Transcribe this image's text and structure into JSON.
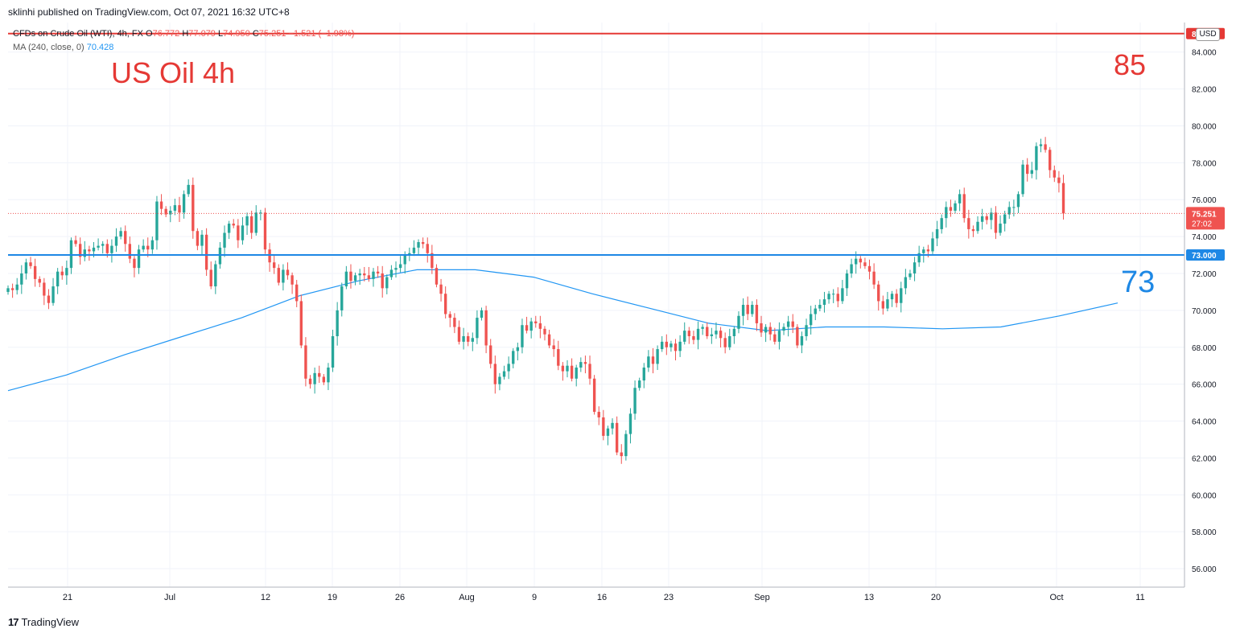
{
  "published_line": "sklinhi published on TradingView.com, Oct 07, 2021 16:32 UTC+8",
  "legend": {
    "symbol": "CFDs on Crude Oil (WTI), 4h, FX",
    "open_label": "O",
    "open": "76.772",
    "high_label": "H",
    "high": "77.079",
    "low_label": "L",
    "low": "74.950",
    "close_label": "C",
    "close": "75.251",
    "change": "−1.521 (−1.98%)",
    "ma_label": "MA (240, close, 0)",
    "ma_value": "70.428"
  },
  "annotations": {
    "title": "US Oil 4h",
    "upper_level": "85",
    "lower_level": "73"
  },
  "price_axis": {
    "currency": "USD",
    "ticks": [
      "84.000",
      "82.000",
      "80.000",
      "78.000",
      "76.000",
      "74.000",
      "72.000",
      "70.000",
      "68.000",
      "66.000",
      "64.000",
      "62.000",
      "60.000",
      "58.000",
      "56.000"
    ],
    "price_badge": "75.251",
    "countdown": "27:02",
    "upper_badge": "85.000",
    "lower_badge": "73.000"
  },
  "time_axis": {
    "labels": [
      "21",
      "Jul",
      "12",
      "19",
      "26",
      "Aug",
      "9",
      "16",
      "23",
      "Sep",
      "13",
      "20",
      "Oct",
      "11"
    ]
  },
  "colors": {
    "bull": "#26a69a",
    "bear": "#ef5350",
    "ma": "#2196f3",
    "resistance": "#e53935",
    "support": "#1e88e5",
    "grid": "#f0f3fa"
  },
  "branding": "TradingView",
  "chart_data": {
    "type": "candlestick",
    "timeframe": "4h",
    "y_range": [
      55,
      85.6
    ],
    "horizontal_lines": [
      85.0,
      73.0
    ],
    "last_price": 75.251,
    "closes": [
      [
        0,
        71.2
      ],
      [
        1,
        71.1
      ],
      [
        2,
        71.4
      ],
      [
        3,
        72.0
      ],
      [
        4,
        72.6
      ],
      [
        5,
        72.4
      ],
      [
        6,
        71.7
      ],
      [
        7,
        71.5
      ],
      [
        8,
        70.8
      ],
      [
        9,
        70.4
      ],
      [
        10,
        71.3
      ],
      [
        11,
        72.1
      ],
      [
        12,
        71.9
      ],
      [
        13,
        72.3
      ],
      [
        14,
        73.8
      ],
      [
        15,
        73.6
      ],
      [
        16,
        72.9
      ],
      [
        17,
        73.3
      ],
      [
        18,
        73.2
      ],
      [
        19,
        73.4
      ],
      [
        20,
        73.5
      ],
      [
        21,
        73.6
      ],
      [
        22,
        73.1
      ],
      [
        23,
        73.5
      ],
      [
        24,
        74.0
      ],
      [
        25,
        74.3
      ],
      [
        26,
        73.6
      ],
      [
        27,
        72.8
      ],
      [
        28,
        72.3
      ],
      [
        29,
        73.3
      ],
      [
        30,
        73.5
      ],
      [
        31,
        73.3
      ],
      [
        32,
        73.8
      ],
      [
        33,
        75.9
      ],
      [
        34,
        75.5
      ],
      [
        35,
        75.2
      ],
      [
        36,
        75.4
      ],
      [
        37,
        75.7
      ],
      [
        38,
        75.3
      ],
      [
        39,
        76.3
      ],
      [
        40,
        76.8
      ],
      [
        41,
        74.3
      ],
      [
        42,
        73.5
      ],
      [
        43,
        74.1
      ],
      [
        44,
        72.2
      ],
      [
        45,
        71.3
      ],
      [
        46,
        72.5
      ],
      [
        47,
        73.4
      ],
      [
        48,
        74.2
      ],
      [
        49,
        74.7
      ],
      [
        50,
        74.6
      ],
      [
        51,
        73.8
      ],
      [
        52,
        74.6
      ],
      [
        53,
        75.1
      ],
      [
        54,
        74.2
      ],
      [
        55,
        75.3
      ],
      [
        56,
        75.3
      ],
      [
        57,
        73.3
      ],
      [
        58,
        72.6
      ],
      [
        59,
        72.3
      ],
      [
        60,
        71.5
      ],
      [
        61,
        72.2
      ],
      [
        62,
        71.9
      ],
      [
        63,
        71.4
      ],
      [
        64,
        70.5
      ],
      [
        65,
        68.1
      ],
      [
        66,
        66.3
      ],
      [
        67,
        66.0
      ],
      [
        68,
        66.6
      ],
      [
        69,
        66.4
      ],
      [
        70,
        66.1
      ],
      [
        71,
        66.9
      ],
      [
        72,
        68.6
      ],
      [
        73,
        70.0
      ],
      [
        74,
        71.3
      ],
      [
        75,
        72.1
      ],
      [
        76,
        71.6
      ],
      [
        77,
        71.9
      ],
      [
        78,
        72.0
      ],
      [
        79,
        71.9
      ],
      [
        80,
        71.7
      ],
      [
        81,
        72.1
      ],
      [
        82,
        72.0
      ],
      [
        83,
        71.2
      ],
      [
        84,
        71.8
      ],
      [
        85,
        72.2
      ],
      [
        86,
        72.3
      ],
      [
        87,
        72.5
      ],
      [
        88,
        73.0
      ],
      [
        89,
        73.1
      ],
      [
        90,
        73.4
      ],
      [
        91,
        73.7
      ],
      [
        92,
        73.6
      ],
      [
        93,
        73.1
      ],
      [
        94,
        72.3
      ],
      [
        95,
        71.4
      ],
      [
        96,
        70.9
      ],
      [
        97,
        69.8
      ],
      [
        98,
        69.6
      ],
      [
        99,
        69.1
      ],
      [
        100,
        68.3
      ],
      [
        101,
        68.6
      ],
      [
        102,
        68.3
      ],
      [
        103,
        68.5
      ],
      [
        104,
        69.6
      ],
      [
        105,
        70.0
      ],
      [
        106,
        68.1
      ],
      [
        107,
        67.1
      ],
      [
        108,
        66.0
      ],
      [
        109,
        66.4
      ],
      [
        110,
        66.7
      ],
      [
        111,
        67.1
      ],
      [
        112,
        67.8
      ],
      [
        113,
        68.0
      ],
      [
        114,
        69.2
      ],
      [
        115,
        68.9
      ],
      [
        116,
        69.4
      ],
      [
        117,
        69.3
      ],
      [
        118,
        69.0
      ],
      [
        119,
        68.7
      ],
      [
        120,
        68.1
      ],
      [
        121,
        67.9
      ],
      [
        122,
        67.0
      ],
      [
        123,
        66.7
      ],
      [
        124,
        67.0
      ],
      [
        125,
        66.3
      ],
      [
        126,
        66.9
      ],
      [
        127,
        67.2
      ],
      [
        128,
        67.1
      ],
      [
        129,
        66.3
      ],
      [
        130,
        64.5
      ],
      [
        131,
        64.2
      ],
      [
        132,
        63.2
      ],
      [
        133,
        63.6
      ],
      [
        134,
        63.9
      ],
      [
        135,
        62.3
      ],
      [
        136,
        62.1
      ],
      [
        137,
        63.3
      ],
      [
        138,
        64.4
      ],
      [
        139,
        65.8
      ],
      [
        140,
        66.2
      ],
      [
        141,
        66.9
      ],
      [
        142,
        67.5
      ],
      [
        143,
        67.1
      ],
      [
        144,
        67.9
      ],
      [
        145,
        68.3
      ],
      [
        146,
        68.0
      ],
      [
        147,
        68.2
      ],
      [
        148,
        67.8
      ],
      [
        149,
        68.3
      ],
      [
        150,
        68.9
      ],
      [
        151,
        68.6
      ],
      [
        152,
        68.4
      ],
      [
        153,
        69.0
      ],
      [
        154,
        69.1
      ],
      [
        155,
        68.6
      ],
      [
        156,
        68.7
      ],
      [
        157,
        68.9
      ],
      [
        158,
        68.5
      ],
      [
        159,
        68.0
      ],
      [
        160,
        68.6
      ],
      [
        161,
        69.0
      ],
      [
        162,
        69.7
      ],
      [
        163,
        70.3
      ],
      [
        164,
        69.8
      ],
      [
        165,
        70.3
      ],
      [
        166,
        69.3
      ],
      [
        167,
        68.8
      ],
      [
        168,
        69.1
      ],
      [
        169,
        68.7
      ],
      [
        170,
        68.3
      ],
      [
        171,
        68.9
      ],
      [
        172,
        69.1
      ],
      [
        173,
        69.4
      ],
      [
        174,
        69.1
      ],
      [
        175,
        68.1
      ],
      [
        176,
        68.6
      ],
      [
        177,
        69.2
      ],
      [
        178,
        69.8
      ],
      [
        179,
        70.1
      ],
      [
        180,
        70.3
      ],
      [
        181,
        70.6
      ],
      [
        182,
        70.9
      ],
      [
        183,
        70.9
      ],
      [
        184,
        70.5
      ],
      [
        185,
        71.2
      ],
      [
        186,
        72.0
      ],
      [
        187,
        72.5
      ],
      [
        188,
        72.8
      ],
      [
        189,
        72.6
      ],
      [
        190,
        72.4
      ],
      [
        191,
        72.1
      ],
      [
        192,
        71.4
      ],
      [
        193,
        70.5
      ],
      [
        194,
        70.1
      ],
      [
        195,
        70.6
      ],
      [
        196,
        70.9
      ],
      [
        197,
        70.4
      ],
      [
        198,
        71.2
      ],
      [
        199,
        71.8
      ],
      [
        200,
        72.0
      ],
      [
        201,
        72.6
      ],
      [
        202,
        73.1
      ],
      [
        203,
        73.3
      ],
      [
        204,
        73.2
      ],
      [
        205,
        73.9
      ],
      [
        206,
        74.4
      ],
      [
        207,
        75.0
      ],
      [
        208,
        75.6
      ],
      [
        209,
        75.4
      ],
      [
        210,
        75.8
      ],
      [
        211,
        76.3
      ],
      [
        212,
        75.0
      ],
      [
        213,
        74.4
      ],
      [
        214,
        74.3
      ],
      [
        215,
        74.8
      ],
      [
        216,
        75.1
      ],
      [
        217,
        74.9
      ],
      [
        218,
        75.3
      ],
      [
        219,
        74.2
      ],
      [
        220,
        74.7
      ],
      [
        221,
        75.2
      ],
      [
        222,
        75.6
      ],
      [
        223,
        75.6
      ],
      [
        224,
        76.3
      ],
      [
        225,
        77.9
      ],
      [
        226,
        77.4
      ],
      [
        227,
        77.6
      ],
      [
        228,
        78.9
      ],
      [
        229,
        79.0
      ],
      [
        230,
        78.7
      ],
      [
        231,
        77.6
      ],
      [
        232,
        77.2
      ],
      [
        233,
        76.9
      ],
      [
        234,
        75.251
      ]
    ],
    "moving_average": [
      [
        0,
        65.65
      ],
      [
        20,
        66.5
      ],
      [
        40,
        67.6
      ],
      [
        60,
        68.6
      ],
      [
        80,
        69.6
      ],
      [
        100,
        70.8
      ],
      [
        120,
        71.6
      ],
      [
        140,
        72.2
      ],
      [
        160,
        72.2
      ],
      [
        180,
        71.8
      ],
      [
        200,
        70.9
      ],
      [
        220,
        70.1
      ],
      [
        240,
        69.3
      ],
      [
        260,
        68.9
      ],
      [
        280,
        69.1
      ],
      [
        300,
        69.1
      ],
      [
        320,
        69.0
      ],
      [
        340,
        69.1
      ],
      [
        360,
        69.7
      ],
      [
        380,
        70.4
      ]
    ]
  }
}
